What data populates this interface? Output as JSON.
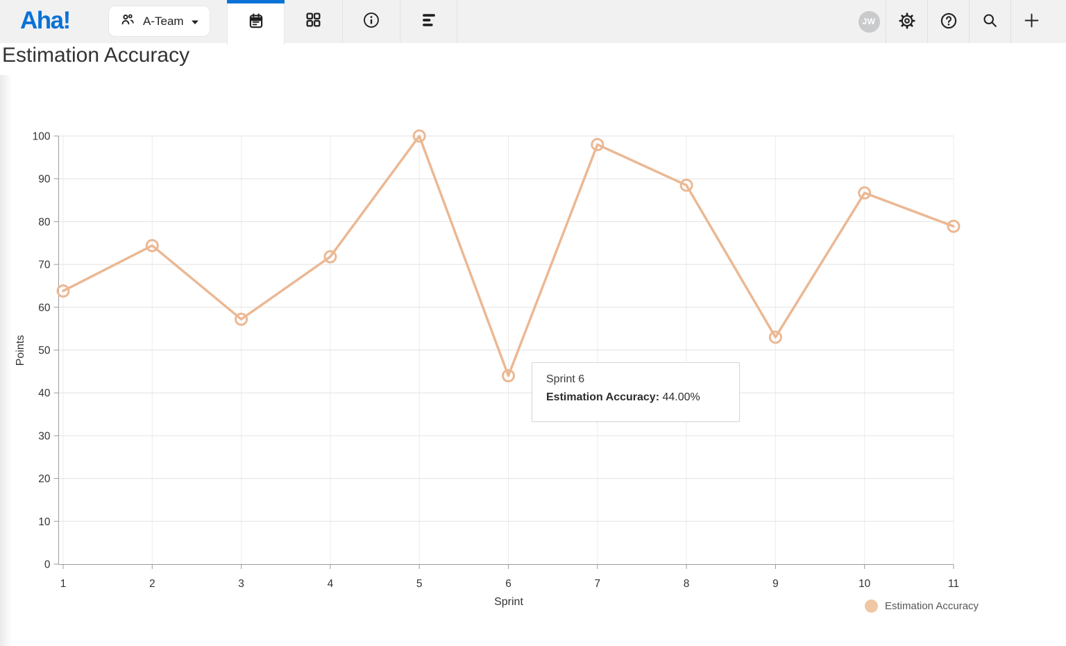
{
  "header": {
    "logo": "Aha!",
    "team_selector": {
      "label": "A-Team"
    },
    "tabs": [
      {
        "name": "calendar",
        "active": true
      },
      {
        "name": "grid",
        "active": false
      },
      {
        "name": "info",
        "active": false
      },
      {
        "name": "bars",
        "active": false
      }
    ],
    "avatar_initials": "JW",
    "colors": {
      "brand_blue": "#0a72d6",
      "active_tab_indicator": "#0b73d7"
    }
  },
  "page": {
    "title": "Estimation Accuracy"
  },
  "chart_data": {
    "type": "line",
    "title": "Estimation Accuracy",
    "xlabel": "Sprint",
    "ylabel": "Points",
    "x": [
      1,
      2,
      3,
      4,
      5,
      6,
      7,
      8,
      9,
      10,
      11
    ],
    "series": [
      {
        "name": "Estimation Accuracy",
        "values": [
          63.8,
          74.4,
          57.2,
          71.8,
          100,
          44,
          98,
          88.5,
          53,
          86.7,
          78.9
        ],
        "color": "#ebb893"
      }
    ],
    "ylim": [
      0,
      100
    ],
    "yticks": [
      0,
      10,
      20,
      30,
      40,
      50,
      60,
      70,
      80,
      90,
      100
    ],
    "grid": true,
    "legend_position": "bottom-right"
  },
  "tooltip": {
    "title": "Sprint 6",
    "series_label": "Estimation Accuracy:",
    "value": "44.00%"
  },
  "legend": {
    "label": "Estimation Accuracy",
    "marker_color": "#f0c7a4"
  }
}
